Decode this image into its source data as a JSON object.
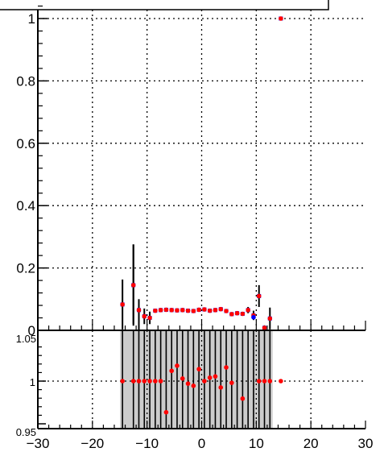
{
  "chart_data": [
    {
      "type": "scatter",
      "panel": "top",
      "title": "",
      "xlabel": "",
      "ylabel": "",
      "xlim": [
        -30,
        30
      ],
      "ylim": [
        0,
        1.05
      ],
      "grid": true,
      "grid_style": "dotted",
      "x_tick_labels": [
        "-30",
        "-20",
        "-10",
        "0",
        "10",
        "20",
        "30"
      ],
      "y_tick_labels": [
        "0",
        "0.2",
        "0.4",
        "0.6",
        "0.8",
        "1"
      ],
      "series": [
        {
          "color": "#ff0000",
          "marker": "circle",
          "points": [
            {
              "x": -14.5,
              "y": 0.083,
              "err": 0.08
            },
            {
              "x": -12.5,
              "y": 0.145,
              "err": 0.13
            },
            {
              "x": -11.5,
              "y": 0.065,
              "err": 0.035
            },
            {
              "x": -10.5,
              "y": 0.045,
              "err": 0.025
            },
            {
              "x": -9.5,
              "y": 0.04,
              "err": 0.02
            },
            {
              "x": -8.5,
              "y": 0.063,
              "err": 0.005
            },
            {
              "x": -7.5,
              "y": 0.065,
              "err": 0.005
            },
            {
              "x": -6.5,
              "y": 0.066,
              "err": 0.005
            },
            {
              "x": -5.5,
              "y": 0.065,
              "err": 0.005
            },
            {
              "x": -4.5,
              "y": 0.064,
              "err": 0.005
            },
            {
              "x": -3.5,
              "y": 0.065,
              "err": 0.005
            },
            {
              "x": -2.5,
              "y": 0.063,
              "err": 0.005
            },
            {
              "x": -1.5,
              "y": 0.062,
              "err": 0.005
            },
            {
              "x": -0.5,
              "y": 0.066,
              "err": 0.005
            },
            {
              "x": 0.5,
              "y": 0.067,
              "err": 0.005
            },
            {
              "x": 1.5,
              "y": 0.063,
              "err": 0.005
            },
            {
              "x": 2.5,
              "y": 0.065,
              "err": 0.005
            },
            {
              "x": 3.5,
              "y": 0.068,
              "err": 0.005
            },
            {
              "x": 4.5,
              "y": 0.062,
              "err": 0.005
            },
            {
              "x": 5.5,
              "y": 0.052,
              "err": 0.005
            },
            {
              "x": 6.5,
              "y": 0.055,
              "err": 0.005
            },
            {
              "x": 7.5,
              "y": 0.053,
              "err": 0.005
            },
            {
              "x": 8.5,
              "y": 0.065,
              "err": 0.01
            },
            {
              "x": 9.5,
              "y": 0.048,
              "err": 0.015
            },
            {
              "x": 10.5,
              "y": 0.11,
              "err": 0.035
            },
            {
              "x": 11.5,
              "y": 0.008,
              "err": 0.008
            },
            {
              "x": 12.5,
              "y": 0.038,
              "err": 0.035
            },
            {
              "x": 14.5,
              "y": 1.0,
              "err": 0
            }
          ]
        },
        {
          "color": "#0000ff",
          "marker": "square",
          "points": [
            {
              "x": -14.5,
              "y": 0.083
            },
            {
              "x": -12.5,
              "y": 0.145
            },
            {
              "x": -11.5,
              "y": 0.065
            },
            {
              "x": -10.5,
              "y": 0.045
            },
            {
              "x": -9.5,
              "y": 0.04
            },
            {
              "x": -8.5,
              "y": 0.063
            },
            {
              "x": -7.5,
              "y": 0.064
            },
            {
              "x": -6.5,
              "y": 0.065
            },
            {
              "x": -5.5,
              "y": 0.065
            },
            {
              "x": -4.5,
              "y": 0.063
            },
            {
              "x": -3.5,
              "y": 0.065
            },
            {
              "x": -2.5,
              "y": 0.063
            },
            {
              "x": -1.5,
              "y": 0.062
            },
            {
              "x": -0.5,
              "y": 0.065
            },
            {
              "x": 0.5,
              "y": 0.066
            },
            {
              "x": 1.5,
              "y": 0.063
            },
            {
              "x": 2.5,
              "y": 0.064
            },
            {
              "x": 3.5,
              "y": 0.067
            },
            {
              "x": 4.5,
              "y": 0.062
            },
            {
              "x": 5.5,
              "y": 0.052
            },
            {
              "x": 6.5,
              "y": 0.055
            },
            {
              "x": 7.5,
              "y": 0.053
            },
            {
              "x": 8.5,
              "y": 0.064
            },
            {
              "x": 9.5,
              "y": 0.042
            },
            {
              "x": 10.5,
              "y": 0.11
            },
            {
              "x": 11.5,
              "y": 0.008
            },
            {
              "x": 12.5,
              "y": 0.038
            },
            {
              "x": 14.5,
              "y": 1.0
            }
          ]
        }
      ]
    },
    {
      "type": "scatter",
      "panel": "bottom-ratio",
      "title": "",
      "xlabel": "",
      "ylabel": "",
      "xlim": [
        -30,
        30
      ],
      "ylim": [
        0.95,
        1.05
      ],
      "grid": true,
      "grid_style": "dotted",
      "x_tick_labels": [
        "-30",
        "-20",
        "-10",
        "0",
        "10",
        "20",
        "30"
      ],
      "y_tick_labels": [
        "0.95",
        "1",
        "1.05"
      ],
      "band": {
        "x_range": [
          -14.5,
          13
        ],
        "color": "#cccccc"
      },
      "series": [
        {
          "color": "#ff0000",
          "marker": "circle",
          "points": [
            {
              "x": -14.5,
              "y": 1.0
            },
            {
              "x": -12.5,
              "y": 1.0
            },
            {
              "x": -11.5,
              "y": 1.0
            },
            {
              "x": -10.5,
              "y": 1.0
            },
            {
              "x": -9.5,
              "y": 1.0
            },
            {
              "x": -8.5,
              "y": 1.0
            },
            {
              "x": -7.5,
              "y": 1.0
            },
            {
              "x": -6.5,
              "y": 0.9635
            },
            {
              "x": -5.5,
              "y": 1.012
            },
            {
              "x": -4.5,
              "y": 1.018
            },
            {
              "x": -3.5,
              "y": 1.003
            },
            {
              "x": -2.5,
              "y": 0.997
            },
            {
              "x": -1.5,
              "y": 0.9945
            },
            {
              "x": -0.5,
              "y": 1.014
            },
            {
              "x": 0.5,
              "y": 1.0
            },
            {
              "x": 1.5,
              "y": 1.004
            },
            {
              "x": 2.5,
              "y": 1.0055
            },
            {
              "x": 3.5,
              "y": 0.9925
            },
            {
              "x": 4.5,
              "y": 1.016
            },
            {
              "x": 5.5,
              "y": 0.998
            },
            {
              "x": 7.5,
              "y": 0.9795
            },
            {
              "x": 10.5,
              "y": 1.0
            },
            {
              "x": 11.5,
              "y": 1.0
            },
            {
              "x": 12.5,
              "y": 1.0
            },
            {
              "x": 14.5,
              "y": 1.0
            }
          ]
        }
      ]
    }
  ],
  "overflow_label": "1.05"
}
